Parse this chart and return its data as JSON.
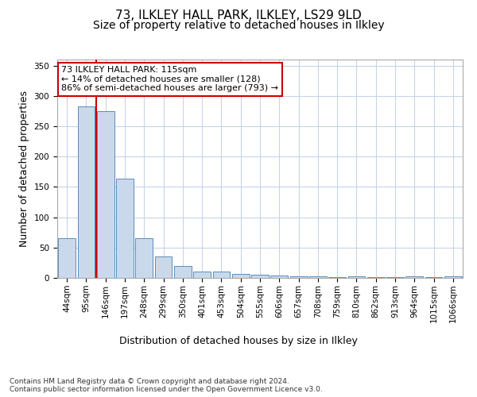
{
  "title1": "73, ILKLEY HALL PARK, ILKLEY, LS29 9LD",
  "title2": "Size of property relative to detached houses in Ilkley",
  "xlabel": "Distribution of detached houses by size in Ilkley",
  "ylabel": "Number of detached properties",
  "categories": [
    "44sqm",
    "95sqm",
    "146sqm",
    "197sqm",
    "248sqm",
    "299sqm",
    "350sqm",
    "401sqm",
    "453sqm",
    "504sqm",
    "555sqm",
    "606sqm",
    "657sqm",
    "708sqm",
    "759sqm",
    "810sqm",
    "862sqm",
    "913sqm",
    "964sqm",
    "1015sqm",
    "1066sqm"
  ],
  "values": [
    65,
    283,
    275,
    163,
    65,
    35,
    20,
    10,
    10,
    6,
    5,
    4,
    2,
    3,
    1,
    2,
    1,
    1,
    2,
    1,
    2
  ],
  "bar_color": "#c9d9eb",
  "bar_edge_color": "#5b8db8",
  "vline_x_idx": 1.5,
  "vline_color": "#cc0000",
  "annotation_text": "73 ILKLEY HALL PARK: 115sqm\n← 14% of detached houses are smaller (128)\n86% of semi-detached houses are larger (793) →",
  "annotation_box_color": "#ffffff",
  "annotation_box_edge": "#cc0000",
  "ylim": [
    0,
    360
  ],
  "yticks": [
    0,
    50,
    100,
    150,
    200,
    250,
    300,
    350
  ],
  "footer": "Contains HM Land Registry data © Crown copyright and database right 2024.\nContains public sector information licensed under the Open Government Licence v3.0.",
  "bg_color": "#ffffff",
  "grid_color": "#c8d4e8",
  "title1_fontsize": 11,
  "title2_fontsize": 10,
  "axis_label_fontsize": 9,
  "tick_fontsize": 7.5,
  "annotation_fontsize": 8,
  "footer_fontsize": 6.5
}
